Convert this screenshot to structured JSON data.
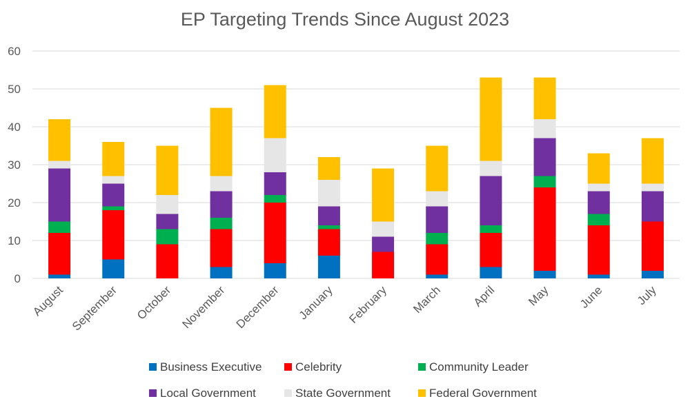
{
  "chart_data": {
    "type": "bar",
    "stacked": true,
    "title": "EP Targeting Trends Since August 2023",
    "xlabel": "",
    "ylabel": "",
    "ylim": [
      0,
      60
    ],
    "yticks": [
      0,
      10,
      20,
      30,
      40,
      50,
      60
    ],
    "grid": true,
    "legend_position": "bottom",
    "categories": [
      "August",
      "September",
      "October",
      "November",
      "December",
      "January",
      "February",
      "March",
      "April",
      "May",
      "June",
      "July"
    ],
    "series": [
      {
        "name": "Business Executive",
        "color": "#0070c0",
        "values": [
          1,
          5,
          0,
          3,
          4,
          6,
          0,
          1,
          3,
          2,
          1,
          2
        ]
      },
      {
        "name": "Celebrity",
        "color": "#ff0000",
        "values": [
          11,
          13,
          9,
          10,
          16,
          7,
          7,
          8,
          9,
          22,
          13,
          13
        ]
      },
      {
        "name": "Community Leader",
        "color": "#00b050",
        "values": [
          3,
          1,
          4,
          3,
          2,
          1,
          0,
          3,
          2,
          3,
          3,
          0
        ]
      },
      {
        "name": "Local Government",
        "color": "#7030a0",
        "values": [
          14,
          6,
          4,
          7,
          6,
          5,
          4,
          7,
          13,
          10,
          6,
          8
        ]
      },
      {
        "name": "State Government",
        "color": "#e7e6e6",
        "values": [
          2,
          2,
          5,
          4,
          9,
          7,
          4,
          4,
          4,
          5,
          2,
          2
        ]
      },
      {
        "name": "Federal Government",
        "color": "#ffc000",
        "values": [
          11,
          9,
          13,
          18,
          14,
          6,
          14,
          12,
          22,
          11,
          8,
          12
        ]
      }
    ]
  }
}
